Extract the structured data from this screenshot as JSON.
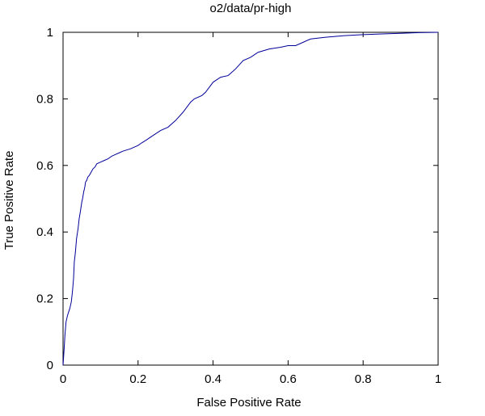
{
  "chart_data": {
    "type": "line",
    "title": "o2/data/pr-high",
    "xlabel": "False Positive Rate",
    "ylabel": "True Positive Rate",
    "xlim": [
      0,
      1
    ],
    "ylim": [
      0,
      1
    ],
    "xticks": [
      0,
      0.2,
      0.4,
      0.6,
      0.8,
      1
    ],
    "yticks": [
      0,
      0.2,
      0.4,
      0.6,
      0.8,
      1
    ],
    "xtick_labels": [
      "0",
      "0.2",
      "0.4",
      "0.6",
      "0.8",
      "1"
    ],
    "ytick_labels": [
      "0",
      "0.2",
      "0.4",
      "0.6",
      "0.8",
      "1"
    ],
    "grid": false,
    "legend": "none",
    "series": [
      {
        "color": "#000099",
        "x": [
          0,
          0.003,
          0.005,
          0.008,
          0.012,
          0.018,
          0.022,
          0.025,
          0.028,
          0.03,
          0.033,
          0.036,
          0.04,
          0.043,
          0.046,
          0.05,
          0.052,
          0.055,
          0.058,
          0.06,
          0.063,
          0.066,
          0.07,
          0.075,
          0.08,
          0.085,
          0.09,
          0.1,
          0.11,
          0.12,
          0.13,
          0.14,
          0.15,
          0.16,
          0.18,
          0.2,
          0.21,
          0.22,
          0.24,
          0.26,
          0.28,
          0.3,
          0.32,
          0.33,
          0.34,
          0.35,
          0.37,
          0.38,
          0.4,
          0.42,
          0.44,
          0.46,
          0.48,
          0.5,
          0.52,
          0.55,
          0.58,
          0.6,
          0.62,
          0.64,
          0.66,
          0.7,
          0.75,
          0.8,
          0.85,
          0.9,
          0.95,
          1
        ],
        "y": [
          0,
          0.05,
          0.09,
          0.13,
          0.15,
          0.17,
          0.19,
          0.22,
          0.26,
          0.31,
          0.34,
          0.38,
          0.41,
          0.44,
          0.46,
          0.49,
          0.5,
          0.52,
          0.535,
          0.55,
          0.555,
          0.565,
          0.57,
          0.58,
          0.59,
          0.595,
          0.605,
          0.61,
          0.615,
          0.62,
          0.628,
          0.633,
          0.638,
          0.643,
          0.65,
          0.66,
          0.668,
          0.675,
          0.69,
          0.705,
          0.715,
          0.735,
          0.76,
          0.775,
          0.79,
          0.8,
          0.81,
          0.82,
          0.85,
          0.865,
          0.87,
          0.89,
          0.915,
          0.925,
          0.94,
          0.95,
          0.955,
          0.96,
          0.96,
          0.97,
          0.98,
          0.985,
          0.99,
          0.993,
          0.995,
          0.997,
          0.999,
          1
        ]
      }
    ]
  }
}
